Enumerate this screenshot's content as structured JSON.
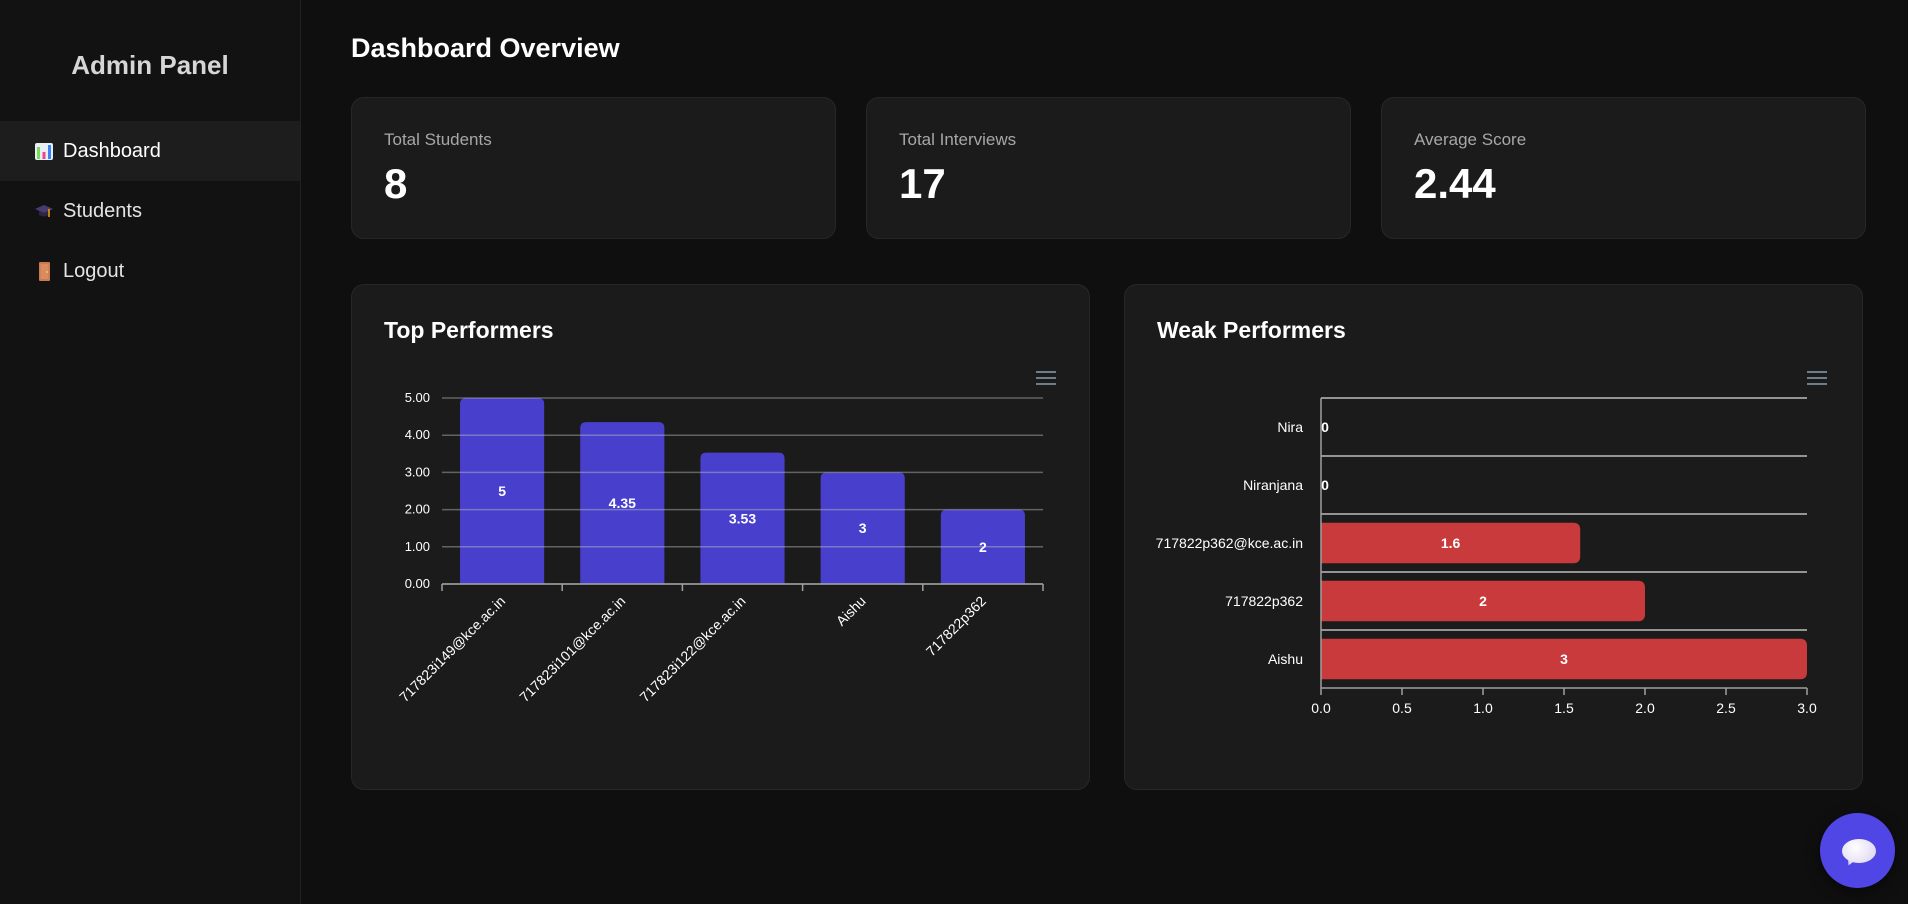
{
  "sidebar": {
    "title": "Admin Panel",
    "items": [
      {
        "label": "Dashboard",
        "icon": "bar-chart-icon",
        "active": true
      },
      {
        "label": "Students",
        "icon": "graduation-cap-icon",
        "active": false
      },
      {
        "label": "Logout",
        "icon": "door-icon",
        "active": false
      }
    ]
  },
  "main": {
    "title": "Dashboard Overview",
    "stats": [
      {
        "label": "Total Students",
        "value": "8"
      },
      {
        "label": "Total Interviews",
        "value": "17"
      },
      {
        "label": "Average Score",
        "value": "2.44"
      }
    ]
  },
  "colors": {
    "top_bar": "#4840cc",
    "weak_bar": "#c83a3b",
    "fab": "#5046e5"
  },
  "chart_data": [
    {
      "type": "bar",
      "orientation": "vertical",
      "title": "Top Performers",
      "categories": [
        "717823i149@kce.ac.in",
        "717823i101@kce.ac.in",
        "717823i122@kce.ac.in",
        "Aishu",
        "717822p362"
      ],
      "values": [
        5,
        4.35,
        3.53,
        3,
        2
      ],
      "data_labels": [
        "5",
        "4.35",
        "3.53",
        "3",
        "2"
      ],
      "yticks": [
        "0.00",
        "1.00",
        "2.00",
        "3.00",
        "4.00",
        "5.00"
      ],
      "ylim": [
        0,
        5
      ],
      "xlabel": "",
      "ylabel": "",
      "grid": true,
      "legend": "none"
    },
    {
      "type": "bar",
      "orientation": "horizontal",
      "title": "Weak Performers",
      "categories": [
        "Nira",
        "Niranjana",
        "717822p362@kce.ac.in",
        "717822p362",
        "Aishu"
      ],
      "values": [
        0,
        0,
        1.6,
        2,
        3
      ],
      "data_labels": [
        "0",
        "0",
        "1.6",
        "2",
        "3"
      ],
      "xticks": [
        "0.0",
        "0.5",
        "1.0",
        "1.5",
        "2.0",
        "2.5",
        "3.0"
      ],
      "xlim": [
        0,
        3
      ],
      "xlabel": "",
      "ylabel": "",
      "grid": true,
      "legend": "none"
    }
  ]
}
